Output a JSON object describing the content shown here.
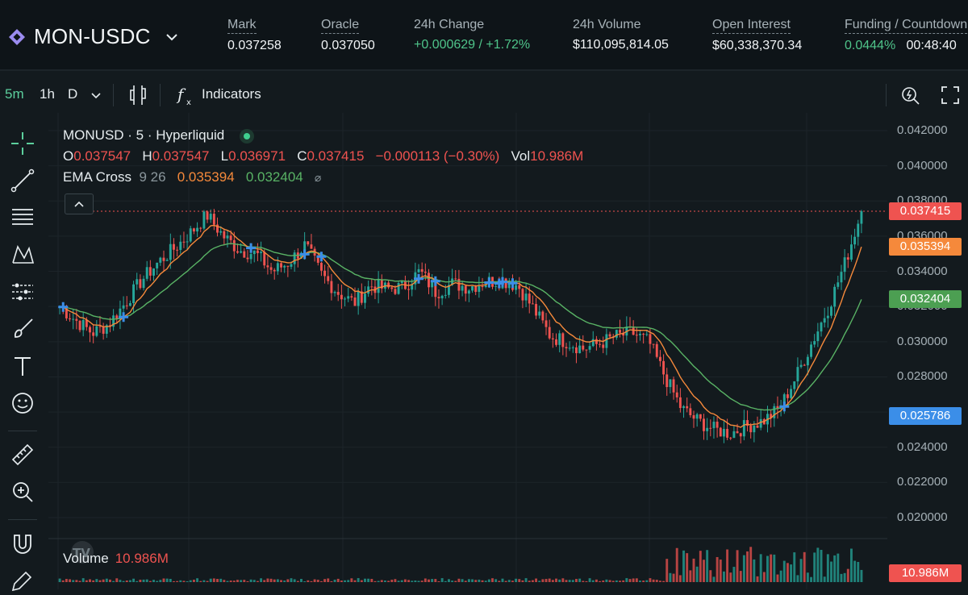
{
  "header": {
    "pair": "MON-USDC",
    "stats": [
      {
        "label": "Mark",
        "value": "0.037258",
        "dashed": true
      },
      {
        "label": "Oracle",
        "value": "0.037050",
        "dashed": true
      },
      {
        "label": "24h Change",
        "value": "+0.000629 / +1.72%",
        "dashed": false,
        "positive": true
      },
      {
        "label": "24h Volume",
        "value": "$110,095,814.05",
        "dashed": false
      },
      {
        "label": "Open Interest",
        "value": "$60,338,370.34",
        "dashed": true
      },
      {
        "label": "Funding / Countdown",
        "value_rate": "0.0444%",
        "value_countdown": "00:48:40",
        "dashed": true
      }
    ]
  },
  "toolbar": {
    "intervals": [
      "5m",
      "1h",
      "D"
    ],
    "active_interval": "5m",
    "indicators_label": "Indicators"
  },
  "legend": {
    "title": "MONUSD · 5 · Hyperliquid",
    "o_label": "O",
    "o": "0.037547",
    "h_label": "H",
    "h": "0.037547",
    "l_label": "L",
    "l": "0.036971",
    "c_label": "C",
    "c": "0.037415",
    "change": "−0.000113 (−0.30%)",
    "vol_label": "Vol",
    "vol": "10.986M",
    "ema_label": "EMA Cross",
    "ema_params": "9 26",
    "ema_fast": "0.035394",
    "ema_slow": "0.032404"
  },
  "price_axis": [
    "0.042000",
    "0.040000",
    "0.038000",
    "0.036000",
    "0.034000",
    "0.032000",
    "0.030000",
    "0.028000",
    "0.026000",
    "0.024000",
    "0.022000",
    "0.020000"
  ],
  "price_tags": [
    {
      "text": "0.037415",
      "color": "#ef5350",
      "price": 0.037415
    },
    {
      "text": "0.035394",
      "color": "#f5893b",
      "price": 0.035394
    },
    {
      "text": "0.032404",
      "color": "#4c9f52",
      "price": 0.032404
    },
    {
      "text": "0.025786",
      "color": "#3b8ee8",
      "price": 0.025786
    }
  ],
  "volume": {
    "label": "Volume",
    "value": "10.986M",
    "tag": "10.986M"
  },
  "colors": {
    "up": "#26a69a",
    "down": "#ef5350",
    "ema_fast": "#f5893b",
    "ema_slow": "#59b365",
    "cross": "#3b8ee8"
  },
  "chart_data": {
    "type": "candlestick",
    "ylim": [
      0.019,
      0.0425
    ],
    "close_anchors": [
      0.032,
      0.0312,
      0.0305,
      0.031,
      0.0322,
      0.0335,
      0.0345,
      0.0353,
      0.0362,
      0.0372,
      0.036,
      0.0352,
      0.035,
      0.034,
      0.0345,
      0.0355,
      0.0338,
      0.0328,
      0.0322,
      0.0332,
      0.033,
      0.0331,
      0.034,
      0.0328,
      0.0333,
      0.0331,
      0.0334,
      0.0335,
      0.0332,
      0.0318,
      0.0303,
      0.03,
      0.0296,
      0.0299,
      0.0303,
      0.0305,
      0.03,
      0.028,
      0.0262,
      0.0255,
      0.025,
      0.0248,
      0.0252,
      0.0255,
      0.0262,
      0.028,
      0.03,
      0.032,
      0.0345,
      0.0374
    ],
    "ema_fast_last": 0.035394,
    "ema_slow_last": 0.032404,
    "last_close": 0.037415
  }
}
